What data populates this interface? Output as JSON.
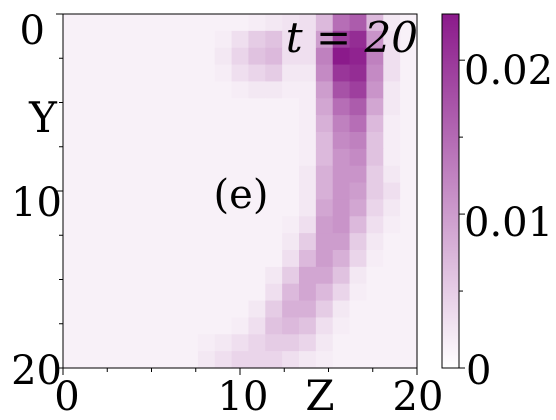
{
  "chart_data": {
    "type": "heatmap",
    "panel_label": "(e)",
    "annotation": "t = 20",
    "xlabel": "Z",
    "ylabel": "Y",
    "x_ticks": [
      "0",
      "10",
      "20"
    ],
    "y_ticks": [
      "0",
      "10",
      "20"
    ],
    "x_range": [
      0,
      20
    ],
    "y_range": [
      0,
      20
    ],
    "y_axis_inverted": true,
    "colorbar": {
      "min": 0,
      "max": 0.023,
      "ticks": [
        "0",
        "0.01",
        "0.02"
      ],
      "tick_values": [
        0,
        0.01,
        0.02
      ],
      "color_low": "#ffffff",
      "color_high": "#8b1a8b"
    },
    "grid_size": [
      21,
      21
    ],
    "values": [
      [
        0,
        0,
        0,
        0,
        0,
        0,
        0,
        0,
        0,
        0,
        0,
        0.0005,
        0.001,
        0.0015,
        0.002,
        0.006,
        0.014,
        0.016,
        0.006,
        0.001,
        0
      ],
      [
        0,
        0,
        0,
        0,
        0,
        0,
        0,
        0,
        0,
        0.0005,
        0.002,
        0.004,
        0.005,
        0.002,
        0.002,
        0.009,
        0.019,
        0.021,
        0.01,
        0.002,
        0
      ],
      [
        0,
        0,
        0,
        0,
        0,
        0,
        0,
        0,
        0,
        0.001,
        0.003,
        0.005,
        0.006,
        0.002,
        0.002,
        0.012,
        0.023,
        0.022,
        0.012,
        0.002,
        0
      ],
      [
        0,
        0,
        0,
        0,
        0,
        0,
        0,
        0,
        0,
        0.0005,
        0.002,
        0.003,
        0.004,
        0.001,
        0.001,
        0.011,
        0.02,
        0.021,
        0.011,
        0.002,
        0
      ],
      [
        0,
        0,
        0,
        0,
        0,
        0,
        0,
        0,
        0,
        0,
        0.0005,
        0.001,
        0.001,
        0.0005,
        0.0005,
        0.009,
        0.017,
        0.019,
        0.01,
        0.001,
        0
      ],
      [
        0,
        0,
        0,
        0,
        0,
        0,
        0,
        0,
        0,
        0,
        0,
        0,
        0,
        0,
        0.0005,
        0.008,
        0.014,
        0.016,
        0.008,
        0.001,
        0
      ],
      [
        0,
        0,
        0,
        0,
        0,
        0,
        0,
        0,
        0,
        0,
        0,
        0,
        0,
        0,
        0.0005,
        0.007,
        0.012,
        0.014,
        0.006,
        0.0005,
        0
      ],
      [
        0,
        0,
        0,
        0,
        0,
        0,
        0,
        0,
        0,
        0,
        0,
        0,
        0,
        0,
        0.0005,
        0.006,
        0.011,
        0.012,
        0.005,
        0.0005,
        0
      ],
      [
        0,
        0,
        0,
        0,
        0,
        0,
        0,
        0,
        0,
        0,
        0,
        0,
        0,
        0,
        0.0005,
        0.006,
        0.01,
        0.011,
        0.005,
        0.0005,
        0
      ],
      [
        0,
        0,
        0,
        0,
        0,
        0,
        0,
        0,
        0,
        0,
        0,
        0,
        0,
        0,
        0.001,
        0.007,
        0.01,
        0.01,
        0.004,
        0.001,
        0
      ],
      [
        0,
        0,
        0,
        0,
        0,
        0,
        0,
        0,
        0,
        0,
        0,
        0,
        0,
        0,
        0.001,
        0.007,
        0.01,
        0.009,
        0.004,
        0.002,
        0
      ],
      [
        0,
        0,
        0,
        0,
        0,
        0,
        0,
        0,
        0,
        0,
        0,
        0,
        0,
        0,
        0.001,
        0.008,
        0.01,
        0.008,
        0.003,
        0.001,
        0
      ],
      [
        0,
        0,
        0,
        0,
        0,
        0,
        0,
        0,
        0,
        0,
        0,
        0,
        0,
        0.0005,
        0.002,
        0.009,
        0.01,
        0.006,
        0.002,
        0.0005,
        0
      ],
      [
        0,
        0,
        0,
        0,
        0,
        0,
        0,
        0,
        0,
        0,
        0,
        0,
        0,
        0.001,
        0.004,
        0.009,
        0.009,
        0.004,
        0.001,
        0,
        0
      ],
      [
        0,
        0,
        0,
        0,
        0,
        0,
        0,
        0,
        0,
        0,
        0,
        0,
        0,
        0.002,
        0.006,
        0.009,
        0.007,
        0.003,
        0.0005,
        0,
        0
      ],
      [
        0,
        0,
        0,
        0,
        0,
        0,
        0,
        0,
        0,
        0,
        0,
        0,
        0.001,
        0.004,
        0.008,
        0.008,
        0.005,
        0.001,
        0,
        0,
        0
      ],
      [
        0,
        0,
        0,
        0,
        0,
        0,
        0,
        0,
        0,
        0,
        0,
        0,
        0.002,
        0.006,
        0.008,
        0.006,
        0.003,
        0.0005,
        0,
        0,
        0
      ],
      [
        0,
        0,
        0,
        0,
        0,
        0,
        0,
        0,
        0,
        0,
        0,
        0.001,
        0.004,
        0.007,
        0.007,
        0.004,
        0.001,
        0,
        0,
        0,
        0
      ],
      [
        0,
        0,
        0,
        0,
        0,
        0,
        0,
        0,
        0,
        0,
        0.0005,
        0.002,
        0.005,
        0.006,
        0.005,
        0.002,
        0.0005,
        0,
        0,
        0,
        0
      ],
      [
        0,
        0,
        0,
        0,
        0,
        0,
        0,
        0,
        0.0005,
        0.001,
        0.002,
        0.003,
        0.004,
        0.004,
        0.003,
        0.001,
        0,
        0,
        0,
        0,
        0
      ],
      [
        0,
        0,
        0,
        0,
        0,
        0,
        0,
        0,
        0.001,
        0.002,
        0.003,
        0.003,
        0.003,
        0.002,
        0.001,
        0.0005,
        0,
        0,
        0,
        0,
        0
      ]
    ]
  }
}
